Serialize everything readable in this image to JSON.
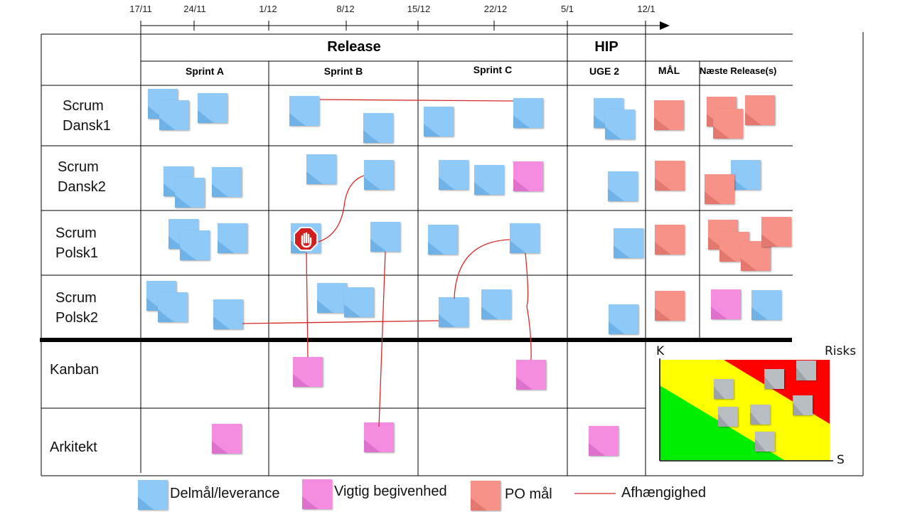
{
  "timeline": {
    "dates": [
      "17/11",
      "24/11",
      "1/12",
      "8/12",
      "15/12",
      "22/12",
      "5/1",
      "12/1"
    ]
  },
  "header": {
    "release_label": "Release",
    "hip_label": "HIP",
    "columns": [
      "Sprint A",
      "Sprint B",
      "Sprint C",
      "UGE 2",
      "MÅL",
      "Næste Release(s)"
    ]
  },
  "rows": [
    {
      "label": "Scrum\n Dansk1"
    },
    {
      "label": "Scrum\n Dansk2"
    },
    {
      "label": "Scrum\nPolsk1"
    },
    {
      "label": "Scrum\nPolsk2"
    },
    {
      "label": "Kanban"
    },
    {
      "label": "Arkitekt"
    }
  ],
  "risks": {
    "title": "Risks",
    "y_axis_label": "K",
    "x_axis_label": "S"
  },
  "legend": [
    {
      "label": "Delmål/leverance",
      "type": "delmaal"
    },
    {
      "label": "Vigtig begivenhed",
      "type": "vigtig"
    },
    {
      "label": "PO mål",
      "type": "po"
    },
    {
      "label": "Afhængighed",
      "type": "dependency"
    }
  ],
  "colors": {
    "delmaal": "#8ec9f7",
    "vigtig": "#f48ce0",
    "po": "#f69288",
    "dependency": "#d62a2a",
    "risk_green": "#00ee00",
    "risk_yellow": "#ffff00",
    "risk_red": "#ff0000",
    "risk_note": "#b9bec3"
  }
}
